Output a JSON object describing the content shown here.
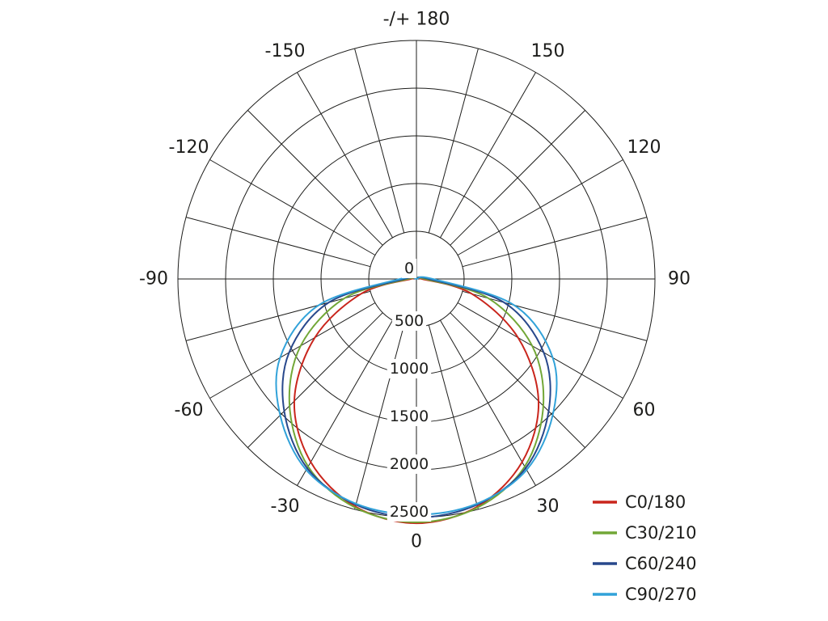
{
  "chart_data": {
    "type": "line",
    "coordinate_system": "polar",
    "description_visible": "photometric luminous intensity distribution polar diagram",
    "top_axis_label": "-/+ 180",
    "angle_tick_labels": [
      {
        "text": "0",
        "angle": 0
      },
      {
        "text": "30",
        "angle": 30
      },
      {
        "text": "60",
        "angle": 60
      },
      {
        "text": "90",
        "angle": 90
      },
      {
        "text": "120",
        "angle": 120
      },
      {
        "text": "150",
        "angle": 150
      },
      {
        "text": "-/+ 180",
        "angle": 180
      },
      {
        "text": "-150",
        "angle": -150
      },
      {
        "text": "-120",
        "angle": -120
      },
      {
        "text": "-90",
        "angle": -90
      },
      {
        "text": "-60",
        "angle": -60
      },
      {
        "text": "-30",
        "angle": -30
      }
    ],
    "radial_ticks": [
      {
        "text": "0",
        "value": 0
      },
      {
        "text": "500",
        "value": 500
      },
      {
        "text": "1000",
        "value": 1000
      },
      {
        "text": "1500",
        "value": 1500
      },
      {
        "text": "2000",
        "value": 2000
      },
      {
        "text": "2500",
        "value": 2500
      }
    ],
    "rmax": 2500,
    "spoke_step_deg": 15,
    "grid_on": true,
    "grid_color": "#1d1d1b",
    "legend_position": "bottom-right",
    "angles_deg": [
      -105,
      -90,
      -75,
      -60,
      -45,
      -30,
      -15,
      0,
      15,
      30,
      45,
      60,
      75,
      90,
      105
    ],
    "series": [
      {
        "name": "C0/180",
        "color": "#c9251c",
        "values": [
          0,
          60,
          600,
          1230,
          1810,
          2215,
          2470,
          2560,
          2470,
          2215,
          1810,
          1230,
          600,
          60,
          0
        ]
      },
      {
        "name": "C30/210",
        "color": "#72a737",
        "values": [
          0,
          90,
          780,
          1400,
          1880,
          2270,
          2480,
          2550,
          2480,
          2270,
          1880,
          1400,
          780,
          90,
          0
        ]
      },
      {
        "name": "C60/240",
        "color": "#28488c",
        "values": [
          0,
          130,
          950,
          1540,
          1960,
          2290,
          2450,
          2500,
          2450,
          2290,
          1960,
          1540,
          950,
          130,
          0
        ]
      },
      {
        "name": "C90/270",
        "color": "#31a2d9",
        "values": [
          0,
          170,
          1060,
          1650,
          2020,
          2310,
          2440,
          2470,
          2440,
          2310,
          2020,
          1650,
          1060,
          170,
          0
        ]
      }
    ]
  },
  "legend": {
    "items": [
      {
        "label": "C0/180",
        "color": "#c9251c"
      },
      {
        "label": "C30/210",
        "color": "#72a737"
      },
      {
        "label": "C60/240",
        "color": "#28488c"
      },
      {
        "label": "C90/270",
        "color": "#31a2d9"
      }
    ]
  }
}
